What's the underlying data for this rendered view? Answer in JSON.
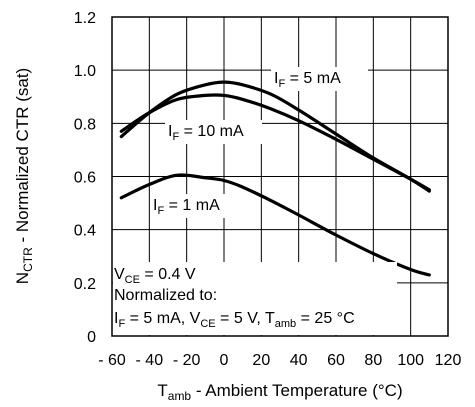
{
  "chart_data": {
    "type": "line",
    "ylabel": {
      "main": "N",
      "sub": "CTR",
      "rest": " - Normalized CTR (sat)"
    },
    "xlabel": {
      "main": "T",
      "sub": "amb",
      "rest": " - Ambient Temperature (°C)"
    },
    "xlim": [
      -60,
      120
    ],
    "ylim": [
      0,
      1.2
    ],
    "xticks": [
      -60,
      -40,
      -20,
      0,
      20,
      40,
      60,
      80,
      100,
      120
    ],
    "xtick_labels": [
      "- 60",
      "- 40",
      "- 20",
      "0",
      "20",
      "40",
      "60",
      "80",
      "100",
      "120"
    ],
    "yticks": [
      0,
      0.2,
      0.4,
      0.6,
      0.8,
      1.0,
      1.2
    ],
    "ytick_labels": [
      "0",
      "0.2",
      "0.4",
      "0.6",
      "0.8",
      "1.0",
      "1.2"
    ],
    "grid": true,
    "series": [
      {
        "name": "I_F = 5 mA",
        "label": {
          "main": "I",
          "sub": "F",
          "rest": " = 5 mA"
        },
        "x": [
          -55,
          -40,
          -25,
          -10,
          0,
          10,
          25,
          40,
          60,
          80,
          100,
          110
        ],
        "y": [
          0.75,
          0.84,
          0.91,
          0.945,
          0.955,
          0.945,
          0.91,
          0.85,
          0.76,
          0.67,
          0.59,
          0.545
        ]
      },
      {
        "name": "I_F = 10 mA",
        "label": {
          "main": "I",
          "sub": "F",
          "rest": " = 10 mA"
        },
        "x": [
          -55,
          -40,
          -25,
          -10,
          0,
          10,
          25,
          40,
          60,
          80,
          100,
          110
        ],
        "y": [
          0.77,
          0.84,
          0.89,
          0.905,
          0.905,
          0.89,
          0.855,
          0.81,
          0.74,
          0.665,
          0.59,
          0.55
        ]
      },
      {
        "name": "I_F = 1 mA",
        "label": {
          "main": "I",
          "sub": "F",
          "rest": " = 1 mA"
        },
        "x": [
          -55,
          -40,
          -25,
          -10,
          0,
          10,
          25,
          40,
          60,
          80,
          100,
          110
        ],
        "y": [
          0.52,
          0.57,
          0.605,
          0.595,
          0.585,
          0.56,
          0.51,
          0.455,
          0.38,
          0.31,
          0.25,
          0.23
        ]
      }
    ],
    "annotation": [
      {
        "main": "V",
        "sub": "CE",
        "rest": " = 0.4 V"
      },
      {
        "text": "Normalized to:"
      },
      {
        "parts": [
          {
            "main": "I",
            "sub": "F",
            "rest": " = 5 mA, "
          },
          {
            "main": "V",
            "sub": "CE",
            "rest": " = 5 V, "
          },
          {
            "main": "T",
            "sub": "amb",
            "rest": " = 25 °C"
          }
        ]
      }
    ]
  }
}
